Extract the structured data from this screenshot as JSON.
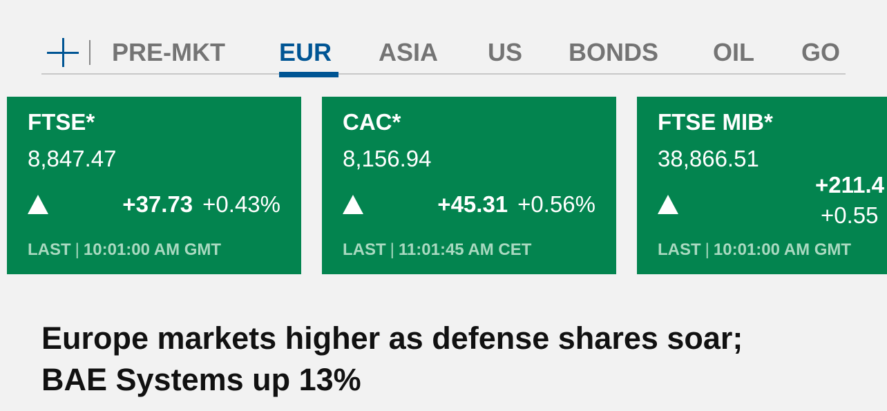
{
  "nav": {
    "tabs": [
      "PRE-MKT",
      "EUR",
      "ASIA",
      "US",
      "BONDS",
      "OIL",
      "GO"
    ],
    "active": 1
  },
  "cards": [
    {
      "name": "FTSE*",
      "value": "8,847.47",
      "change": "+37.73",
      "change_pct": "+0.43%",
      "last_label": "LAST",
      "time": "10:01:00 AM GMT"
    },
    {
      "name": "CAC*",
      "value": "8,156.94",
      "change": "+45.31",
      "change_pct": "+0.56%",
      "last_label": "LAST",
      "time": "11:01:45 AM CET"
    },
    {
      "name": "FTSE MIB*",
      "value": "38,866.51",
      "change": "+211.4",
      "change_pct": "+0.55",
      "last_label": "LAST",
      "time": "10:01:00 AM GMT"
    }
  ],
  "headline": "Europe markets higher as defense shares soar; BAE Systems up 13%"
}
